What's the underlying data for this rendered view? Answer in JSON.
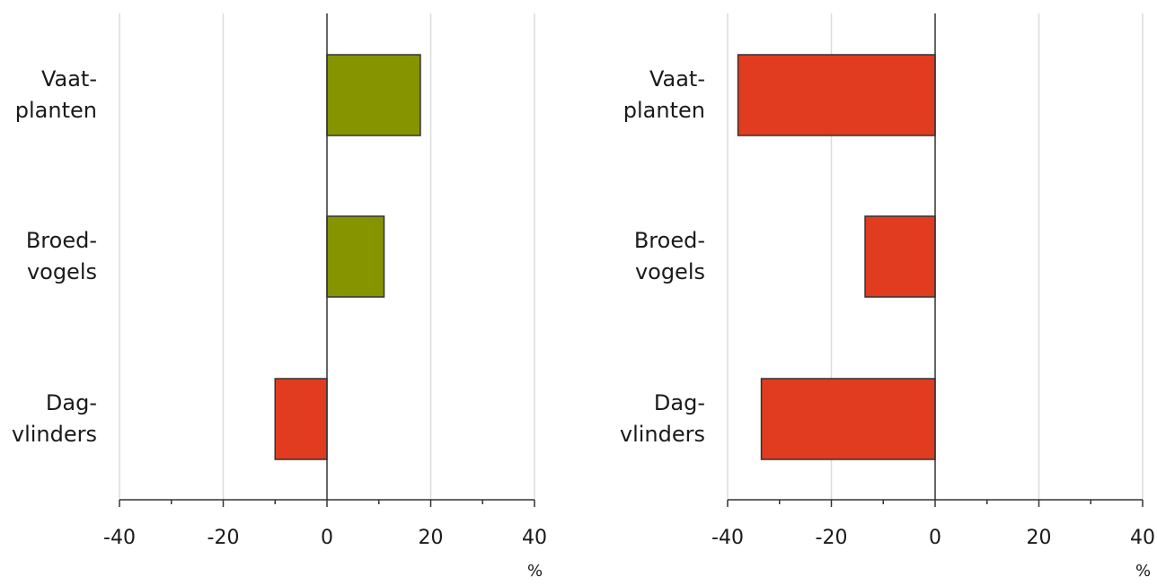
{
  "chart_data": [
    {
      "type": "bar",
      "orientation": "horizontal",
      "categories": [
        [
          "Vaat-",
          "planten"
        ],
        [
          "Broed-",
          "vogels"
        ],
        [
          "Dag-",
          "vlinders"
        ]
      ],
      "values": [
        18,
        11,
        -10
      ],
      "bar_colors": [
        "#869400",
        "#869400",
        "#e13c20"
      ],
      "xlim": [
        -40,
        40
      ],
      "xticks": [
        -40,
        -20,
        0,
        20,
        40
      ],
      "xticklabels": [
        "-40",
        "-20",
        "0",
        "20",
        "40"
      ],
      "xlabel": "%",
      "grid": true
    },
    {
      "type": "bar",
      "orientation": "horizontal",
      "categories": [
        [
          "Vaat-",
          "planten"
        ],
        [
          "Broed-",
          "vogels"
        ],
        [
          "Dag-",
          "vlinders"
        ]
      ],
      "values": [
        -38,
        -13.5,
        -33.5
      ],
      "bar_colors": [
        "#e13c20",
        "#e13c20",
        "#e13c20"
      ],
      "xlim": [
        -40,
        40
      ],
      "xticks": [
        -40,
        -20,
        0,
        20,
        40
      ],
      "xticklabels": [
        "-40",
        "-20",
        "0",
        "20",
        "40"
      ],
      "xlabel": "%",
      "grid": true
    }
  ]
}
